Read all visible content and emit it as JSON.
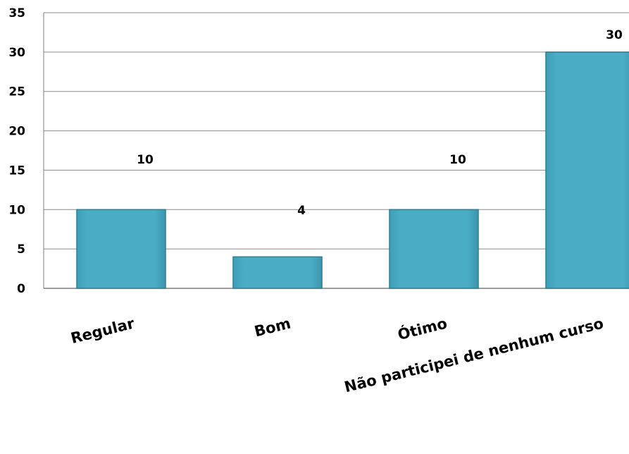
{
  "chart_data": {
    "type": "bar",
    "title": "",
    "xlabel": "",
    "ylabel": "",
    "categories": [
      "Regular",
      "Bom",
      "Ótimo",
      "Não participei de nenhum curso"
    ],
    "values": [
      10,
      4,
      10,
      30
    ],
    "data_labels": [
      "10",
      "4",
      "10",
      "30"
    ],
    "ylim": [
      0,
      35
    ],
    "yticks": [
      0,
      5,
      10,
      15,
      20,
      25,
      30,
      35
    ],
    "ytick_labels": [
      "0",
      "5",
      "10",
      "15",
      "20",
      "25",
      "30",
      "35"
    ],
    "grid": true,
    "legend": "none",
    "bar_color": "#4BACC6",
    "bar_edge_color": "#2E7F92",
    "grid_color": "#8C8C8C"
  }
}
